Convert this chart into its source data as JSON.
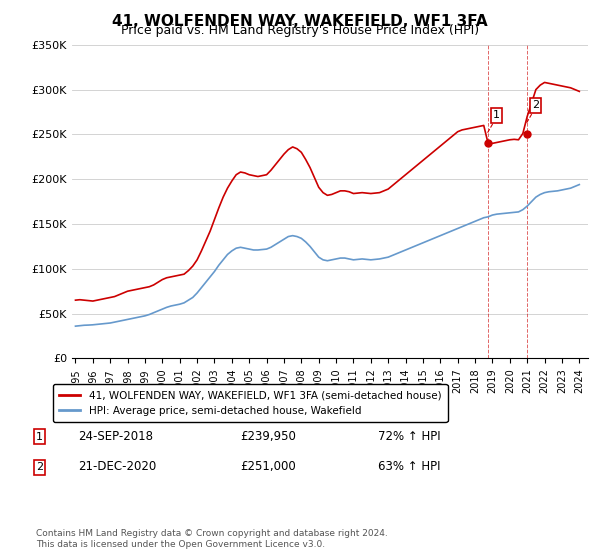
{
  "title": "41, WOLFENDEN WAY, WAKEFIELD, WF1 3FA",
  "subtitle": "Price paid vs. HM Land Registry's House Price Index (HPI)",
  "ylabel": "",
  "legend1": "41, WOLFENDEN WAY, WAKEFIELD, WF1 3FA (semi-detached house)",
  "legend2": "HPI: Average price, semi-detached house, Wakefield",
  "annotation1_label": "1",
  "annotation1_date": "24-SEP-2018",
  "annotation1_price": "£239,950",
  "annotation1_hpi": "72% ↑ HPI",
  "annotation2_label": "2",
  "annotation2_date": "21-DEC-2020",
  "annotation2_price": "£251,000",
  "annotation2_hpi": "63% ↑ HPI",
  "footer": "Contains HM Land Registry data © Crown copyright and database right 2024.\nThis data is licensed under the Open Government Licence v3.0.",
  "red_color": "#cc0000",
  "blue_color": "#6699cc",
  "annotation_box_color": "#cc0000",
  "ylim": [
    0,
    350000
  ],
  "yticks": [
    0,
    50000,
    100000,
    150000,
    200000,
    250000,
    300000,
    350000
  ],
  "ytick_labels": [
    "£0",
    "£50K",
    "£100K",
    "£150K",
    "£200K",
    "£250K",
    "£300K",
    "£350K"
  ],
  "hpi_x": [
    1995.0,
    1995.25,
    1995.5,
    1995.75,
    1996.0,
    1996.25,
    1996.5,
    1996.75,
    1997.0,
    1997.25,
    1997.5,
    1997.75,
    1998.0,
    1998.25,
    1998.5,
    1998.75,
    1999.0,
    1999.25,
    1999.5,
    1999.75,
    2000.0,
    2000.25,
    2000.5,
    2000.75,
    2001.0,
    2001.25,
    2001.5,
    2001.75,
    2002.0,
    2002.25,
    2002.5,
    2002.75,
    2003.0,
    2003.25,
    2003.5,
    2003.75,
    2004.0,
    2004.25,
    2004.5,
    2004.75,
    2005.0,
    2005.25,
    2005.5,
    2005.75,
    2006.0,
    2006.25,
    2006.5,
    2006.75,
    2007.0,
    2007.25,
    2007.5,
    2007.75,
    2008.0,
    2008.25,
    2008.5,
    2008.75,
    2009.0,
    2009.25,
    2009.5,
    2009.75,
    2010.0,
    2010.25,
    2010.5,
    2010.75,
    2011.0,
    2011.25,
    2011.5,
    2011.75,
    2012.0,
    2012.25,
    2012.5,
    2012.75,
    2013.0,
    2013.25,
    2013.5,
    2013.75,
    2014.0,
    2014.25,
    2014.5,
    2014.75,
    2015.0,
    2015.25,
    2015.5,
    2015.75,
    2016.0,
    2016.25,
    2016.5,
    2016.75,
    2017.0,
    2017.25,
    2017.5,
    2017.75,
    2018.0,
    2018.25,
    2018.5,
    2018.75,
    2019.0,
    2019.25,
    2019.5,
    2019.75,
    2020.0,
    2020.25,
    2020.5,
    2020.75,
    2021.0,
    2021.25,
    2021.5,
    2021.75,
    2022.0,
    2022.25,
    2022.5,
    2022.75,
    2023.0,
    2023.25,
    2023.5,
    2023.75,
    2024.0
  ],
  "hpi_y": [
    36000,
    36500,
    37000,
    37200,
    37500,
    38000,
    38500,
    39000,
    39500,
    40500,
    41500,
    42500,
    43500,
    44500,
    45500,
    46500,
    47500,
    49000,
    51000,
    53000,
    55000,
    57000,
    58500,
    59500,
    60500,
    62000,
    65000,
    68000,
    73000,
    79000,
    85000,
    91000,
    97000,
    104000,
    110000,
    116000,
    120000,
    123000,
    124000,
    123000,
    122000,
    121000,
    121000,
    121500,
    122000,
    124000,
    127000,
    130000,
    133000,
    136000,
    137000,
    136000,
    134000,
    130000,
    125000,
    119000,
    113000,
    110000,
    109000,
    110000,
    111000,
    112000,
    112000,
    111000,
    110000,
    110500,
    111000,
    110500,
    110000,
    110500,
    111000,
    112000,
    113000,
    115000,
    117000,
    119000,
    121000,
    123000,
    125000,
    127000,
    129000,
    131000,
    133000,
    135000,
    137000,
    139000,
    141000,
    143000,
    145000,
    147000,
    149000,
    151000,
    153000,
    155000,
    157000,
    158000,
    160000,
    161000,
    161500,
    162000,
    162500,
    163000,
    163500,
    166000,
    170000,
    175000,
    180000,
    183000,
    185000,
    186000,
    186500,
    187000,
    188000,
    189000,
    190000,
    192000,
    194000
  ],
  "red_x": [
    1995.0,
    1995.25,
    1995.5,
    1995.75,
    1996.0,
    1996.25,
    1996.5,
    1996.75,
    1997.0,
    1997.25,
    1997.5,
    1997.75,
    1998.0,
    1998.25,
    1998.5,
    1998.75,
    1999.0,
    1999.25,
    1999.5,
    1999.75,
    2000.0,
    2000.25,
    2000.5,
    2000.75,
    2001.0,
    2001.25,
    2001.5,
    2001.75,
    2002.0,
    2002.25,
    2002.5,
    2002.75,
    2003.0,
    2003.25,
    2003.5,
    2003.75,
    2004.0,
    2004.25,
    2004.5,
    2004.75,
    2005.0,
    2005.25,
    2005.5,
    2005.75,
    2006.0,
    2006.25,
    2006.5,
    2006.75,
    2007.0,
    2007.25,
    2007.5,
    2007.75,
    2008.0,
    2008.25,
    2008.5,
    2008.75,
    2009.0,
    2009.25,
    2009.5,
    2009.75,
    2010.0,
    2010.25,
    2010.5,
    2010.75,
    2011.0,
    2011.25,
    2011.5,
    2011.75,
    2012.0,
    2012.25,
    2012.5,
    2012.75,
    2013.0,
    2013.25,
    2013.5,
    2013.75,
    2014.0,
    2014.25,
    2014.5,
    2014.75,
    2015.0,
    2015.25,
    2015.5,
    2015.75,
    2016.0,
    2016.25,
    2016.5,
    2016.75,
    2017.0,
    2017.25,
    2017.5,
    2017.75,
    2018.0,
    2018.25,
    2018.5,
    2018.75,
    2019.0,
    2019.25,
    2019.5,
    2019.75,
    2020.0,
    2020.25,
    2020.5,
    2020.75,
    2021.0,
    2021.25,
    2021.5,
    2021.75,
    2022.0,
    2022.25,
    2022.5,
    2022.75,
    2023.0,
    2023.25,
    2023.5,
    2023.75,
    2024.0
  ],
  "red_y": [
    65000,
    65500,
    65000,
    64500,
    64000,
    65000,
    66000,
    67000,
    68000,
    69000,
    71000,
    73000,
    75000,
    76000,
    77000,
    78000,
    79000,
    80000,
    82000,
    85000,
    88000,
    90000,
    91000,
    92000,
    93000,
    94000,
    98000,
    103000,
    110000,
    120000,
    131000,
    142000,
    155000,
    168000,
    180000,
    190000,
    198000,
    205000,
    208000,
    207000,
    205000,
    204000,
    203000,
    204000,
    205000,
    210000,
    216000,
    222000,
    228000,
    233000,
    236000,
    234000,
    230000,
    222000,
    213000,
    202000,
    191000,
    185000,
    182000,
    183000,
    185000,
    187000,
    187000,
    186000,
    184000,
    184500,
    185000,
    184500,
    184000,
    184500,
    185000,
    187000,
    189000,
    193000,
    197000,
    201000,
    205000,
    209000,
    213000,
    217000,
    221000,
    225000,
    229000,
    233000,
    237000,
    241000,
    245000,
    249000,
    253000,
    255000,
    256000,
    257000,
    258000,
    259000,
    260000,
    239950,
    240000,
    241000,
    242000,
    243000,
    244000,
    244500,
    244000,
    251000,
    270000,
    285000,
    300000,
    305000,
    308000,
    307000,
    306000,
    305000,
    304000,
    303000,
    302000,
    300000,
    298000
  ],
  "point1_x": 2018.72,
  "point1_y": 239950,
  "point2_x": 2020.97,
  "point2_y": 251000,
  "xtick_years": [
    1995,
    1996,
    1997,
    1998,
    1999,
    2000,
    2001,
    2002,
    2003,
    2004,
    2005,
    2006,
    2007,
    2008,
    2009,
    2010,
    2011,
    2012,
    2013,
    2014,
    2015,
    2016,
    2017,
    2018,
    2019,
    2020,
    2021,
    2022,
    2023,
    2024
  ]
}
